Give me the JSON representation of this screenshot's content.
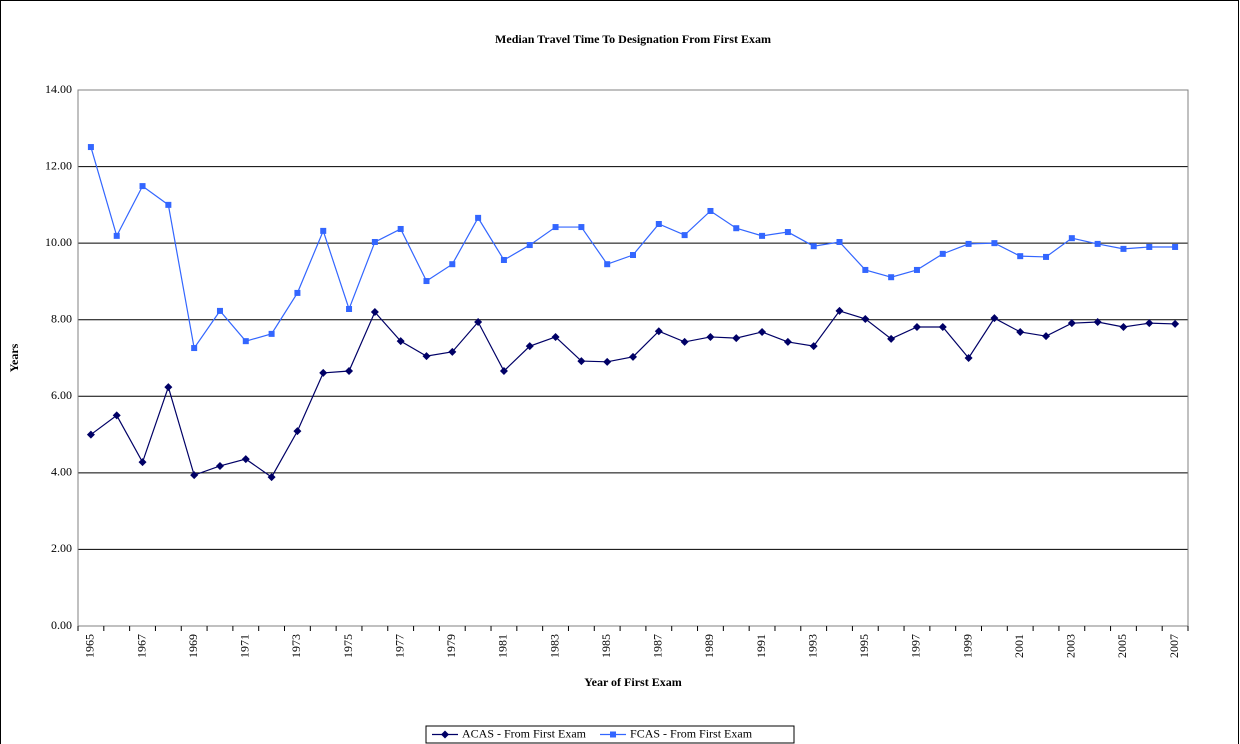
{
  "chart_data": {
    "type": "line",
    "title": "Median Travel Time To Designation From First Exam",
    "x_label": "Year of First Exam",
    "y_label": "Years",
    "categories": [
      "1965",
      null,
      "1967",
      null,
      "1969",
      null,
      "1971",
      null,
      "1973",
      null,
      "1975",
      null,
      "1977",
      null,
      "1979",
      null,
      "1981",
      null,
      "1983",
      null,
      "1985",
      null,
      "1987",
      null,
      "1989",
      null,
      "1991",
      null,
      "1993",
      null,
      "1995",
      null,
      "1997",
      null,
      "1999",
      null,
      "2001",
      null,
      "2003",
      null,
      "2005",
      null,
      "2007"
    ],
    "series": [
      {
        "name": "ACAS - From First Exam",
        "color": "#000066",
        "marker": "diamond",
        "values": [
          5.0,
          5.5,
          4.28,
          6.24,
          3.94,
          4.18,
          4.36,
          3.89,
          5.09,
          6.61,
          6.66,
          8.2,
          7.44,
          7.05,
          7.16,
          7.94,
          6.66,
          7.31,
          7.55,
          6.92,
          6.9,
          7.03,
          7.7,
          7.42,
          7.55,
          7.52,
          7.68,
          7.42,
          7.31,
          8.23,
          8.02,
          7.5,
          7.81,
          7.81,
          7.0,
          8.04,
          7.68,
          7.57,
          7.91,
          7.94,
          7.81,
          7.91,
          7.89
        ]
      },
      {
        "name": "FCAS - From First Exam",
        "color": "#3366ff",
        "marker": "square",
        "values": [
          12.51,
          10.19,
          11.49,
          11.0,
          7.26,
          8.23,
          7.44,
          7.63,
          8.7,
          10.32,
          8.28,
          10.03,
          10.37,
          9.01,
          9.45,
          10.66,
          9.56,
          9.95,
          10.42,
          10.42,
          9.45,
          9.69,
          10.5,
          10.21,
          10.84,
          10.39,
          10.19,
          10.29,
          9.92,
          10.03,
          9.3,
          9.11,
          9.3,
          9.72,
          9.98,
          10.0,
          9.66,
          9.64,
          10.13,
          9.98,
          9.85,
          9.9,
          9.9
        ]
      }
    ],
    "ylim": [
      0,
      14
    ],
    "yticks": [
      {
        "value": 0,
        "label": "0.00"
      },
      {
        "value": 2,
        "label": "2.00"
      },
      {
        "value": 4,
        "label": "4.00"
      },
      {
        "value": 6,
        "label": "6.00"
      },
      {
        "value": 8,
        "label": "8.00"
      },
      {
        "value": 10,
        "label": "10.00"
      },
      {
        "value": 12,
        "label": "12.00"
      },
      {
        "value": 14,
        "label": "14.00"
      }
    ],
    "grid": true,
    "legend": "bottom"
  }
}
